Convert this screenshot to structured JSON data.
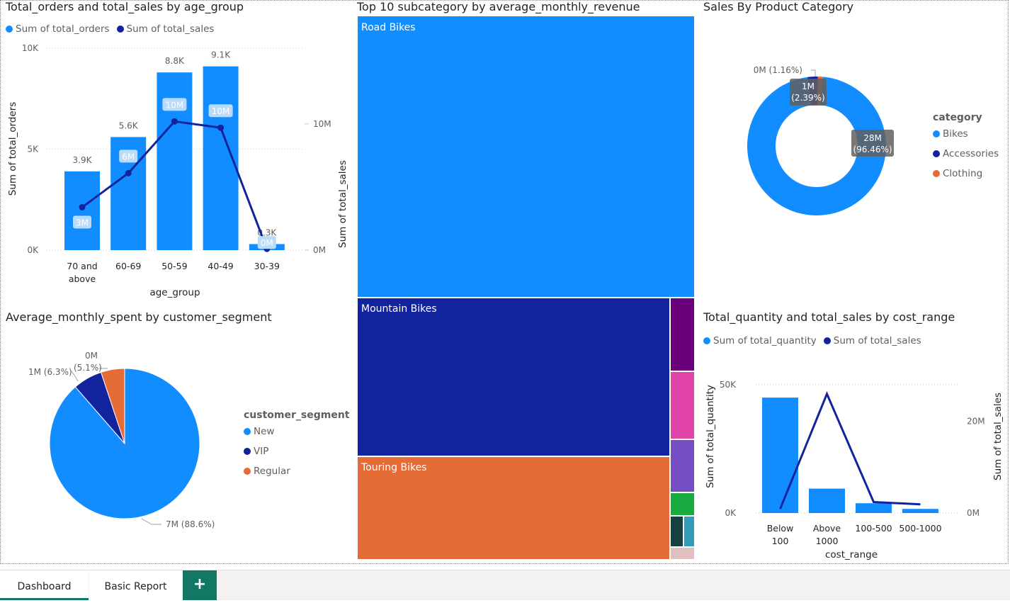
{
  "visual1": {
    "title": "Total_orders and total_sales by age_group",
    "legend": [
      {
        "label": "Sum of total_orders",
        "color": "#118DFF"
      },
      {
        "label": "Sum of total_sales",
        "color": "#12239E"
      }
    ],
    "y_left_label": "Sum of total_orders",
    "x_label": "age_group",
    "y_left_ticks": [
      "10K",
      "5K",
      "0K"
    ],
    "y_right_ticks": [
      "10M",
      "0M"
    ]
  },
  "visual2": {
    "title": "Top 10 subcategory by average_monthly_revenue",
    "y_label": "Sum of total_sales",
    "tiles": [
      {
        "label": "Road Bikes",
        "color": "#118DFF"
      },
      {
        "label": "Mountain Bikes",
        "color": "#12239E"
      },
      {
        "label": "Touring Bikes",
        "color": "#E66C37"
      }
    ],
    "small_tile_colors": [
      "#6B007B",
      "#E044A7",
      "#744EC2",
      "#1AAB40",
      "#15403F",
      "#3599B8",
      "#DFBFBF"
    ]
  },
  "visual3": {
    "title": "Sales By Product Category",
    "legend_title": "category",
    "legend": [
      {
        "label": "Bikes",
        "color": "#118DFF"
      },
      {
        "label": "Accessories",
        "color": "#12239E"
      },
      {
        "label": "Clothing",
        "color": "#E66C37"
      }
    ],
    "labels": {
      "bikes": [
        "28M",
        "(96.46%)"
      ],
      "accessories": [
        "1M",
        "(2.39%)"
      ],
      "clothing": "0M (1.16%)"
    }
  },
  "visual4": {
    "title": "Average_monthly_spent by customer_segment",
    "legend_title": "customer_segment",
    "legend": [
      {
        "label": "New",
        "color": "#118DFF"
      },
      {
        "label": "VIP",
        "color": "#12239E"
      },
      {
        "label": "Regular",
        "color": "#E66C37"
      }
    ],
    "labels": {
      "new": "7M (88.6%)",
      "vip": "1M (6.3%)",
      "regular_value": "0M",
      "regular_pct": "(5.1%)"
    }
  },
  "visual5": {
    "title": "Total_quantity and total_sales by cost_range",
    "legend": [
      {
        "label": "Sum of total_quantity",
        "color": "#118DFF"
      },
      {
        "label": "Sum of total_sales",
        "color": "#12239E"
      }
    ],
    "y_left_label": "Sum of total_quantity",
    "y_right_label": "Sum of total_sales",
    "x_label": "cost_range",
    "y_left_ticks": [
      "50K",
      "0K"
    ],
    "y_right_ticks": [
      "20M",
      "0M"
    ]
  },
  "tabs": {
    "dashboard": "Dashboard",
    "basic_report": "Basic Report",
    "add": "+"
  },
  "chart_data": [
    {
      "type": "bar",
      "title": "Total_orders and total_sales by age_group",
      "categories": [
        "70 and above",
        "60-69",
        "50-59",
        "40-49",
        "30-39"
      ],
      "series": [
        {
          "name": "Sum of total_orders",
          "values": [
            3900,
            5600,
            8800,
            9100,
            300
          ],
          "labels": [
            "3.9K",
            "5.6K",
            "8.8K",
            "9.1K",
            "0.3K"
          ]
        },
        {
          "name": "Sum of total_sales",
          "values": [
            3.4,
            6.1,
            10.2,
            9.7,
            0.1
          ],
          "labels": [
            "3M",
            "6M",
            "10M",
            "10M",
            "0M"
          ]
        }
      ],
      "xlabel": "age_group",
      "ylabel": "Sum of total_orders",
      "ylim": [
        0,
        10000
      ],
      "y2lim": [
        0,
        16
      ]
    },
    {
      "type": "pie",
      "title": "Average_monthly_spent by customer_segment",
      "categories": [
        "New",
        "VIP",
        "Regular"
      ],
      "values": [
        88.6,
        6.3,
        5.1
      ]
    },
    {
      "type": "pie",
      "title": "Sales By Product Category",
      "categories": [
        "Bikes",
        "Accessories",
        "Clothing"
      ],
      "values": [
        96.46,
        2.39,
        1.16
      ]
    },
    {
      "type": "bar",
      "title": "Total_quantity and total_sales by cost_range",
      "categories": [
        "Below 100",
        "Above 1000",
        "100-500",
        "500-1000"
      ],
      "series": [
        {
          "name": "Sum of total_quantity",
          "values": [
            45000,
            9500,
            3800,
            1600
          ]
        },
        {
          "name": "Sum of total_sales",
          "values": [
            0.9,
            26.0,
            2.4,
            1.9
          ]
        }
      ],
      "xlabel": "cost_range",
      "ylabel": "Sum of total_quantity",
      "ylim": [
        0,
        50000
      ],
      "y2lim": [
        0,
        28
      ]
    }
  ]
}
